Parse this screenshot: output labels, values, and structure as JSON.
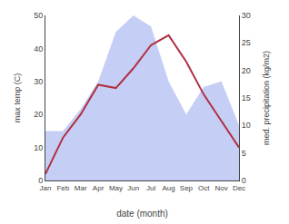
{
  "chart_data": {
    "type": "line",
    "xlabel": "date (month)",
    "ylabel": "max temp (C)",
    "y2label": "med. precipitation (kg/m2)",
    "categories": [
      "Jan",
      "Feb",
      "Mar",
      "Apr",
      "May",
      "Jun",
      "Jul",
      "Aug",
      "Sep",
      "Oct",
      "Nov",
      "Dec"
    ],
    "series": [
      {
        "type": "area",
        "axis": "y2",
        "color": "#c5cef5",
        "values": [
          9,
          9,
          13,
          18,
          27,
          30,
          28,
          18,
          12,
          17,
          18,
          10
        ]
      },
      {
        "type": "line",
        "color": "#b03040",
        "values": [
          2,
          13,
          20,
          29,
          28,
          34,
          41,
          44,
          36,
          26,
          18,
          10
        ]
      }
    ],
    "ylim": [
      0,
      50
    ],
    "yticks": [
      0,
      10,
      20,
      30,
      40,
      50
    ],
    "y2lim": [
      0,
      30
    ],
    "y2ticks": [
      0,
      5,
      10,
      15,
      20,
      25,
      30
    ],
    "grid": false
  }
}
